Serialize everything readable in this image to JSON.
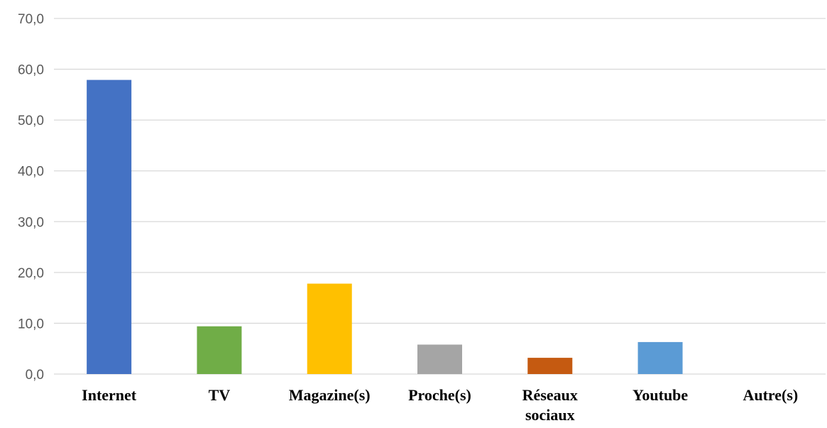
{
  "chart_data": {
    "type": "bar",
    "categories": [
      [
        "Internet"
      ],
      [
        "TV"
      ],
      [
        "Magazine(s)"
      ],
      [
        "Proche(s)"
      ],
      [
        "Réseaux",
        "sociaux"
      ],
      [
        "Youtube"
      ],
      [
        "Autre(s)"
      ]
    ],
    "values": [
      57.9,
      9.4,
      17.8,
      5.8,
      3.2,
      6.3,
      0.0
    ],
    "colors": [
      "#4472c4",
      "#70ad47",
      "#ffc000",
      "#a5a5a5",
      "#c55a11",
      "#5b9bd5",
      "#7f7f7f"
    ],
    "ylim": [
      0,
      70
    ],
    "yticks": [
      "0,0",
      "10,0",
      "20,0",
      "30,0",
      "40,0",
      "50,0",
      "60,0",
      "70,0"
    ],
    "grid": true,
    "title": "",
    "xlabel": "",
    "ylabel": ""
  }
}
